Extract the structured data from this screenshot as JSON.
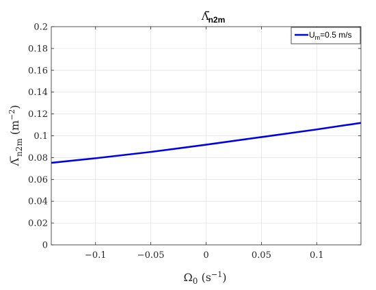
{
  "chart_data": {
    "type": "line",
    "title": "Λ",
    "title_sub": "n2m",
    "title_sup": "−",
    "xlabel": "Ω",
    "xlabel_sub": "0",
    "xlabel_unit": " (s",
    "xlabel_unit_sup": "−1",
    "xlabel_unit_close": ")",
    "ylabel": "Λ",
    "ylabel_sub": "n2m",
    "ylabel_sup": "−",
    "ylabel_unit": " (m",
    "ylabel_unit_sup": "−2",
    "ylabel_unit_close": ")",
    "xlim": [
      -0.14,
      0.14
    ],
    "ylim": [
      0,
      0.2
    ],
    "xticks": [
      -0.1,
      -0.05,
      0,
      0.05,
      0.1
    ],
    "xtick_labels": [
      "−0.1",
      "−0.05",
      "0",
      "0.05",
      "0.1"
    ],
    "yticks": [
      0,
      0.02,
      0.04,
      0.06,
      0.08,
      0.1,
      0.12,
      0.14,
      0.16,
      0.18,
      0.2
    ],
    "ytick_labels": [
      "0",
      "0.02",
      "0.04",
      "0.06",
      "0.08",
      "0.1",
      "0.12",
      "0.14",
      "0.16",
      "0.18",
      "0.2"
    ],
    "grid": true,
    "legend_position": "top-right",
    "series": [
      {
        "name": "U",
        "name_sub": "m",
        "name_rest": "=0.5 m/s",
        "color": "#0000e6",
        "x": [
          -0.14,
          -0.1,
          -0.05,
          0,
          0.05,
          0.1,
          0.14
        ],
        "y": [
          0.0752,
          0.0794,
          0.0852,
          0.0918,
          0.0988,
          0.1058,
          0.1118
        ]
      }
    ]
  }
}
